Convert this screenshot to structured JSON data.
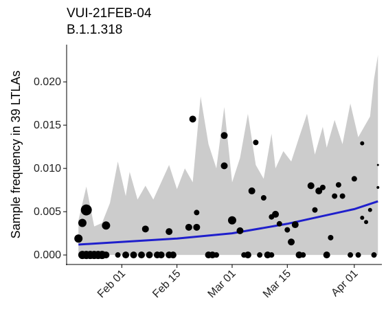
{
  "chart_data": {
    "type": "scatter",
    "title": "VUI-21FEB-04",
    "subtitle": "B.1.1.318",
    "y_label": "Sample frequency in 39 LTLAs",
    "xlim": [
      "01-18",
      "04-08"
    ],
    "xticks": [
      {
        "value": "02-01",
        "label": "Feb 01"
      },
      {
        "value": "02-15",
        "label": "Feb 15"
      },
      {
        "value": "03-01",
        "label": "Mar 01"
      },
      {
        "value": "03-15",
        "label": "Mar 15"
      },
      {
        "value": "04-01",
        "label": "Apr 01"
      }
    ],
    "ylim": [
      -0.0011,
      0.0243
    ],
    "yticks": [
      {
        "value": 0,
        "label": "0.000"
      },
      {
        "value": 0.005,
        "label": "0.005"
      },
      {
        "value": 0.01,
        "label": "0.010"
      },
      {
        "value": 0.015,
        "label": "0.015"
      },
      {
        "value": 0.02,
        "label": "0.020"
      }
    ],
    "grid": false,
    "ribbon": {
      "color": "#cccccc",
      "x": [
        "01-21",
        "01-23",
        "01-25",
        "01-27",
        "01-29",
        "01-31",
        "02-02",
        "02-03",
        "02-05",
        "02-07",
        "02-09",
        "02-11",
        "02-13",
        "02-15",
        "02-17",
        "02-19",
        "02-21",
        "02-23",
        "02-25",
        "02-27",
        "03-01",
        "03-03",
        "03-05",
        "03-07",
        "03-09",
        "03-11",
        "03-12",
        "03-14",
        "03-16",
        "03-18",
        "03-20",
        "03-22",
        "03-24",
        "03-25",
        "03-27",
        "03-29",
        "03-31",
        "04-02",
        "04-05",
        "04-06",
        "04-07"
      ],
      "upper": [
        0.004,
        0.0079,
        0.0033,
        0.0037,
        0.006,
        0.0108,
        0.0068,
        0.0096,
        0.0064,
        0.008,
        0.0064,
        0.0084,
        0.0104,
        0.0076,
        0.01,
        0.0084,
        0.0183,
        0.0128,
        0.01,
        0.0171,
        0.0084,
        0.0112,
        0.0163,
        0.0104,
        0.0088,
        0.014,
        0.01,
        0.012,
        0.0108,
        0.0136,
        0.0163,
        0.0116,
        0.0148,
        0.0124,
        0.0156,
        0.0128,
        0.0175,
        0.0136,
        0.016,
        0.0203,
        0.0231
      ]
    },
    "trend": {
      "color": "#1f1fcc",
      "x": [
        "01-21",
        "02-15",
        "03-01",
        "03-15",
        "04-01",
        "04-07"
      ],
      "values": [
        0.0012,
        0.0019,
        0.0025,
        0.0036,
        0.0053,
        0.0062
      ]
    },
    "points": {
      "color": "#000000",
      "x": [
        "01-21",
        "01-22",
        "01-23",
        "01-22",
        "01-23",
        "01-24",
        "01-25",
        "01-26",
        "01-27",
        "01-28",
        "01-28",
        "01-31",
        "02-02",
        "02-04",
        "02-06",
        "02-07",
        "02-08",
        "02-10",
        "02-11",
        "02-13",
        "02-14",
        "02-13",
        "02-18",
        "02-19",
        "02-20",
        "02-20",
        "02-23",
        "02-24",
        "02-25",
        "02-27",
        "02-27",
        "03-01",
        "03-03",
        "03-04",
        "03-05",
        "03-06",
        "03-07",
        "03-08",
        "03-09",
        "03-10",
        "03-11",
        "03-11",
        "03-12",
        "03-13",
        "03-15",
        "03-16",
        "03-17",
        "03-18",
        "03-19",
        "03-21",
        "03-22",
        "03-23",
        "03-24",
        "03-25",
        "03-26",
        "03-27",
        "03-28",
        "03-29",
        "03-31",
        "04-01",
        "04-02",
        "04-03",
        "04-03",
        "04-04",
        "04-05",
        "04-06",
        "04-07",
        "04-07"
      ],
      "values": [
        0.0019,
        0.0037,
        0.0052,
        0,
        0,
        0,
        0,
        0,
        0,
        0,
        0.0034,
        0,
        0,
        0,
        0,
        0.003,
        0,
        0,
        0,
        0,
        0,
        0.0027,
        0.0032,
        0.0157,
        0.0049,
        0.0032,
        0,
        0,
        0,
        0.0138,
        0.0103,
        0.004,
        0.0028,
        0,
        0,
        0.0074,
        0.013,
        0,
        0.0066,
        0,
        0,
        0.0044,
        0.0047,
        0.0036,
        0.0029,
        0.0015,
        0.0035,
        0,
        0,
        0.008,
        0.0052,
        0.0074,
        0.0078,
        0,
        0.002,
        0.0068,
        0.0081,
        0.0068,
        0,
        0.0088,
        0,
        0.0129,
        0.0043,
        0.0038,
        0.0052,
        0,
        0.0104,
        0.0078
      ],
      "sizes": [
        6,
        6,
        8,
        6,
        6,
        6,
        6,
        6,
        6,
        5,
        6,
        4,
        5,
        5,
        5,
        5,
        5,
        5,
        5,
        5,
        5,
        5,
        5,
        5,
        4,
        5,
        5,
        5,
        4,
        5,
        5,
        6,
        5,
        4,
        5,
        5,
        4,
        4,
        4,
        5,
        4,
        4,
        5,
        4,
        4,
        5,
        5,
        5,
        4,
        5,
        4,
        5,
        4,
        5,
        4,
        4,
        4,
        4,
        4,
        4,
        4,
        3,
        3,
        3,
        3,
        4,
        1.5,
        2
      ]
    }
  }
}
